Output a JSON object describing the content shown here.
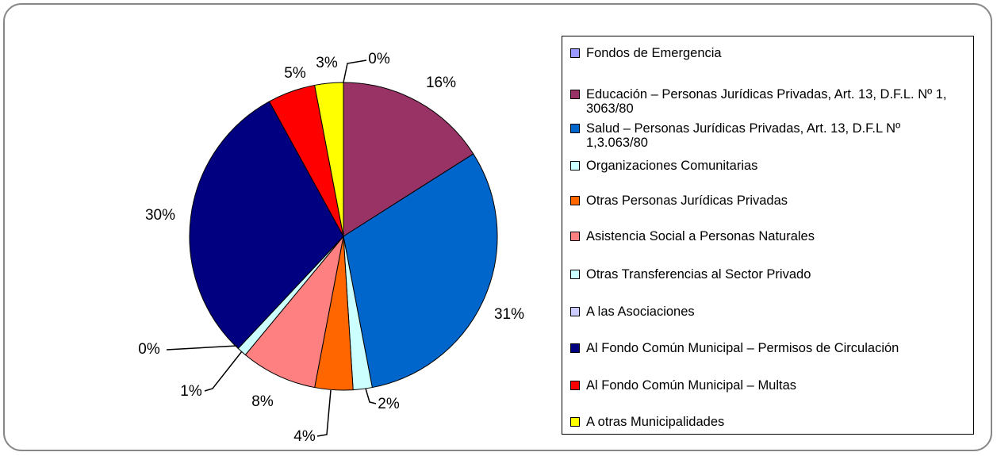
{
  "chart_data": {
    "type": "pie",
    "categories": [
      "Fondos de Emergencia",
      "Educación – Personas Jurídicas Privadas, Art. 13, D.F.L. Nº 1, 3063/80",
      "Salud – Personas Jurídicas Privadas, Art. 13, D.F.L Nº 1,3.063/80",
      "Organizaciones Comunitarias",
      "Otras Personas Jurídicas Privadas",
      "Asistencia Social a Personas Naturales",
      "Otras Transferencias al Sector Privado",
      "A las Asociaciones",
      "Al Fondo Común Municipal – Permisos de Circulación",
      "Al Fondo Común Municipal – Multas",
      "A otras Municipalidades"
    ],
    "values": [
      0,
      16,
      31,
      2,
      4,
      8,
      1,
      0,
      30,
      5,
      3
    ],
    "value_labels": [
      "0%",
      "16%",
      "31%",
      "2%",
      "4%",
      "8%",
      "1%",
      "0%",
      "30%",
      "5%",
      "3%"
    ],
    "colors": [
      "#9999ff",
      "#993366",
      "#0066cc",
      "#ccffff",
      "#ff6600",
      "#ff8080",
      "#ccffff",
      "#ccccff",
      "#000080",
      "#ff0000",
      "#ffff00"
    ],
    "legend": "right"
  }
}
